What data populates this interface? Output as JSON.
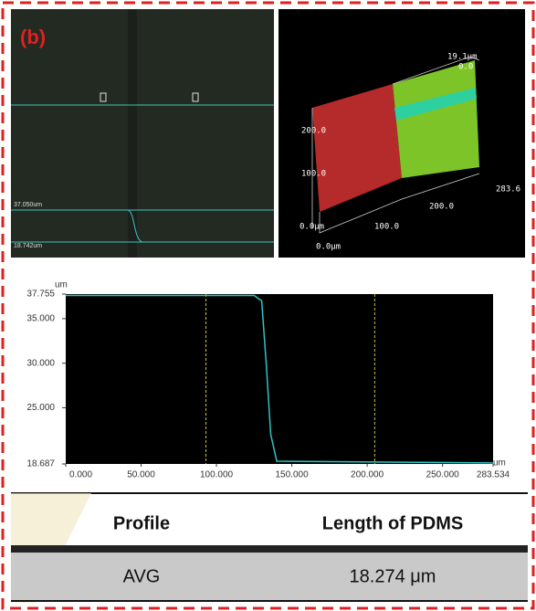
{
  "panel_label": "(b)",
  "micrograph": {
    "labels": [
      "37.050um",
      "18.742um"
    ]
  },
  "render_3d": {
    "labels": [
      "19.1μm",
      "0.0",
      "200.0",
      "100.0",
      "0.0μm",
      "0.0μm",
      "100.0",
      "200.0",
      "283.6"
    ]
  },
  "chart_data": {
    "type": "line",
    "x_unit": "um",
    "y_unit": "um",
    "x": [
      0,
      125,
      130,
      133,
      136,
      140,
      283.534
    ],
    "series": [
      {
        "color": "#2ec4c4",
        "values": [
          37.6,
          37.6,
          37.0,
          30.0,
          22.0,
          19.0,
          18.8
        ]
      }
    ],
    "xlim": [
      0,
      283.534
    ],
    "xticks": [
      {
        "value": 0,
        "label": "0.000"
      },
      {
        "value": 50,
        "label": "50.000"
      },
      {
        "value": 100,
        "label": "100.000"
      },
      {
        "value": 150,
        "label": "150.000"
      },
      {
        "value": 200,
        "label": "200.000"
      },
      {
        "value": 250,
        "label": "250.000"
      },
      283.534
    ],
    "ylim": [
      18.687,
      37.755
    ],
    "yticks": [
      18.687,
      {
        "value": 25,
        "label": "25.000"
      },
      {
        "value": 30,
        "label": "30.000"
      },
      {
        "value": 35,
        "label": "35.000"
      },
      37.755
    ],
    "cursors": [
      93,
      205
    ],
    "cursor_color": "#c8c030"
  },
  "table": {
    "header": [
      "Profile",
      "Length of PDMS"
    ],
    "rows": [
      [
        "AVG",
        "18.274 μm"
      ]
    ]
  }
}
